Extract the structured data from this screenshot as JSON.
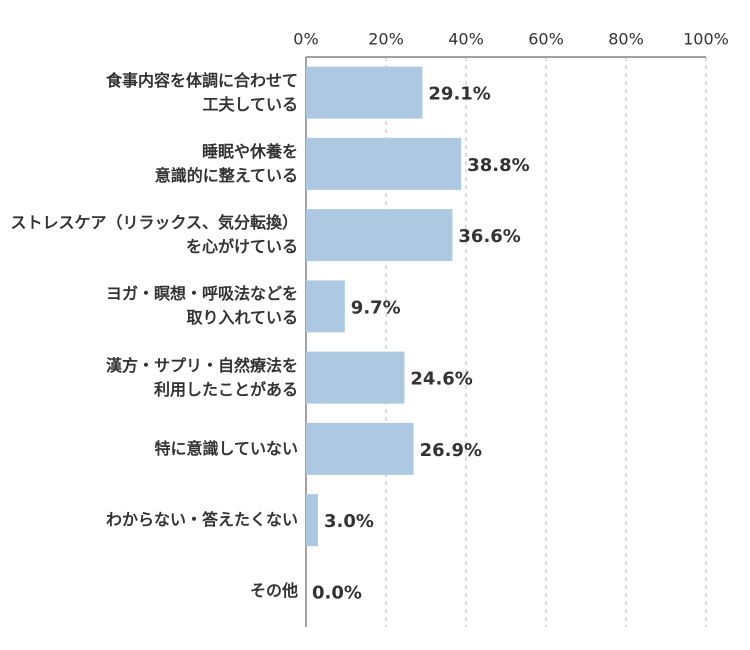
{
  "chart_data": {
    "type": "hbar",
    "categories": [
      "食事内容を体調に合わせて\n工夫している",
      "睡眠や休養を\n意識的に整えている",
      "ストレスケア（リラックス、気分転換）\nを心がけている",
      "ヨガ・瞑想・呼吸法などを\n取り入れている",
      "漢方・サプリ・自然療法を\n利用したことがある",
      "特に意識していない",
      "わからない・答えたくない",
      "その他"
    ],
    "values": [
      29.1,
      38.8,
      36.6,
      9.7,
      24.6,
      26.9,
      3.0,
      0.0
    ],
    "value_labels": [
      "29.1%",
      "38.8%",
      "36.6%",
      "9.7%",
      "24.6%",
      "26.9%",
      "3.0%",
      "0.0%"
    ],
    "color": "#adc9e1",
    "xlim": [
      0,
      100
    ],
    "xticks": [
      {
        "value": 0,
        "label": "0%"
      },
      {
        "value": 20,
        "label": "20%"
      },
      {
        "value": 40,
        "label": "40%"
      },
      {
        "value": 60,
        "label": "60%"
      },
      {
        "value": 80,
        "label": "80%"
      },
      {
        "value": 100,
        "label": "100%"
      }
    ],
    "grid": true
  }
}
